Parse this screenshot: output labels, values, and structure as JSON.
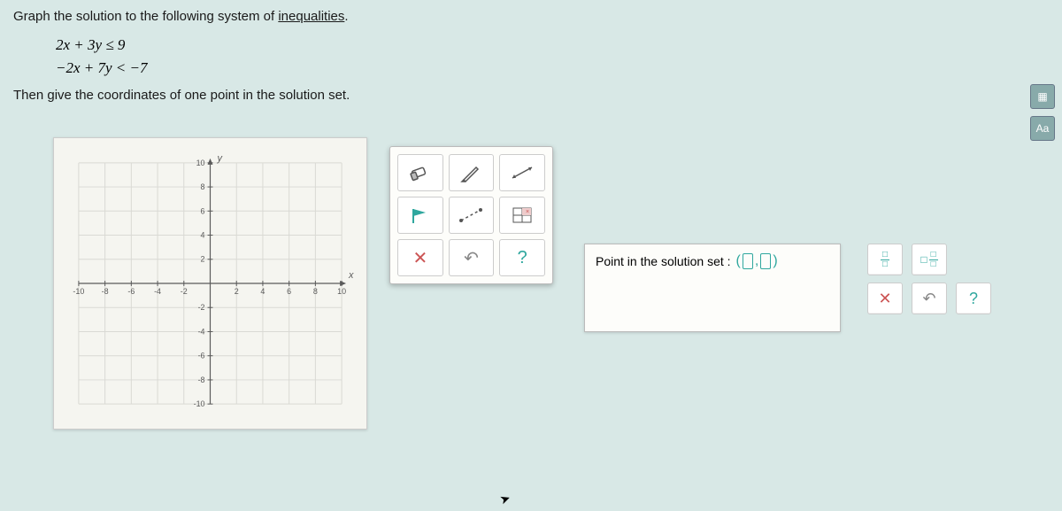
{
  "prompt": {
    "line1_prefix": "Graph the solution to the following system of ",
    "line1_link": "inequalities",
    "line1_suffix": ".",
    "eq1": "2x + 3y ≤ 9",
    "eq2": "−2x + 7y < −7",
    "line2": "Then give the coordinates of one point in the solution set."
  },
  "graph": {
    "xmin": -10,
    "xmax": 10,
    "ymin": -10,
    "ymax": 10,
    "xtick_step": 2,
    "ytick_step": 2,
    "x_labels": [
      "-10",
      "-8",
      "-6",
      "-4",
      "-2",
      "2",
      "4",
      "6",
      "8",
      "10"
    ],
    "y_labels": [
      "10",
      "8",
      "6",
      "4",
      "2",
      "-2",
      "-4",
      "-6",
      "-8",
      "-10"
    ],
    "axis_label_x": "x",
    "axis_label_y": "y",
    "grid_color": "#d9d9d4",
    "axis_color": "#5a5a5a",
    "tick_font_size": 9,
    "background": "#f5f5f0"
  },
  "toolbox": {
    "tools": [
      {
        "name": "eraser-icon",
        "glyph": "eraser"
      },
      {
        "name": "pencil-icon",
        "glyph": "pencil"
      },
      {
        "name": "line-icon",
        "glyph": "line"
      },
      {
        "name": "flag-icon",
        "glyph": "flag"
      },
      {
        "name": "dashed-line-icon",
        "glyph": "dashed"
      },
      {
        "name": "region-icon",
        "glyph": "region"
      },
      {
        "name": "clear-icon",
        "glyph": "×"
      },
      {
        "name": "undo-icon",
        "glyph": "↶"
      },
      {
        "name": "help-icon",
        "glyph": "?"
      }
    ]
  },
  "answer": {
    "label": "Point in the solution set :"
  },
  "side_tools": {
    "row1": [
      {
        "name": "fraction-icon",
        "type": "frac",
        "top": "□",
        "bot": "□"
      },
      {
        "name": "mixed-fraction-icon",
        "type": "mixedfrac",
        "whole": "□",
        "top": "□",
        "bot": "□"
      }
    ],
    "row2": [
      {
        "name": "clear-answer",
        "glyph": "✕"
      },
      {
        "name": "undo-answer",
        "glyph": "↶"
      },
      {
        "name": "help-answer",
        "glyph": "?"
      }
    ]
  },
  "right_icons": {
    "items": [
      {
        "name": "calculator-icon",
        "glyph": "▦"
      },
      {
        "name": "font-icon",
        "glyph": "Aa"
      }
    ]
  }
}
